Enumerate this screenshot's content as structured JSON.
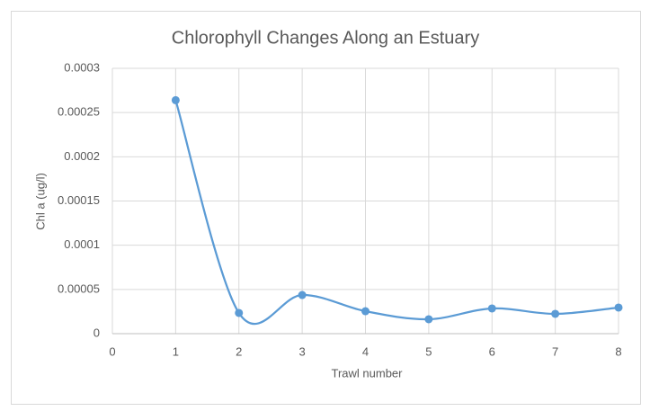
{
  "chart_data": {
    "type": "line",
    "title": "Chlorophyll Changes Along an Estuary",
    "x_label": "Trawl number",
    "y_label": "Chl a (ug/l)",
    "x": [
      1,
      2,
      3,
      4,
      5,
      6,
      7,
      8
    ],
    "series": [
      {
        "name": "Chl a",
        "color": "#5b9bd5",
        "values": [
          0.000264,
          2.34e-05,
          4.37e-05,
          2.54e-05,
          1.63e-05,
          2.85e-05,
          2.24e-05,
          2.95e-05
        ]
      }
    ],
    "xlim": [
      0,
      8
    ],
    "xticks": [
      0,
      1,
      2,
      3,
      4,
      5,
      6,
      7,
      8
    ],
    "ylim": [
      0,
      0.0003
    ],
    "yticks": [
      0,
      5e-05,
      0.0001,
      0.00015,
      0.0002,
      0.00025,
      0.0003
    ],
    "grid": true,
    "smooth": true,
    "markers": true
  }
}
